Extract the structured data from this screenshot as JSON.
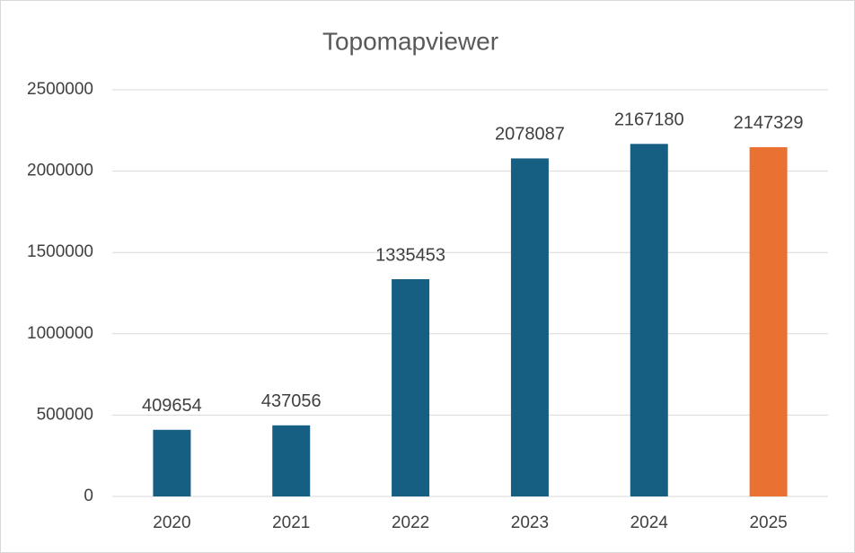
{
  "chart_data": {
    "type": "bar",
    "title": "Topomapviewer",
    "categories": [
      "2020",
      "2021",
      "2022",
      "2023",
      "2024",
      "2025"
    ],
    "values": [
      409654,
      437056,
      1335453,
      2078087,
      2167180,
      2147329
    ],
    "colors": [
      "#165e82",
      "#165e82",
      "#165e82",
      "#165e82",
      "#165e82",
      "#e97132"
    ],
    "ylim": [
      0,
      2500000
    ],
    "yticks": [
      0,
      500000,
      1000000,
      1500000,
      2000000,
      2500000
    ],
    "grid": true
  }
}
